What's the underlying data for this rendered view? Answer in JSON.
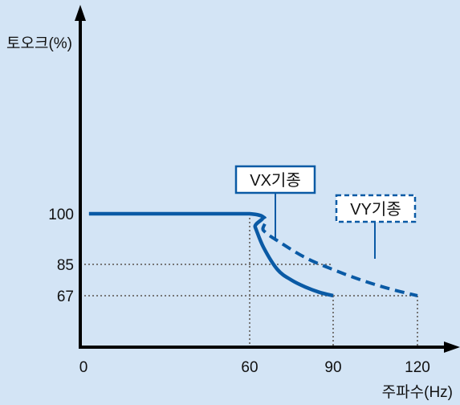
{
  "chart_data": {
    "type": "line",
    "ylabel": "토오크(%)",
    "xlabel": "주파수(Hz)",
    "x_ticks": [
      "0",
      "60",
      "90",
      "120"
    ],
    "y_ticks": [
      "100",
      "85",
      "67"
    ],
    "xlim": [
      0,
      120
    ],
    "ylim": [
      0,
      100
    ],
    "grid": false,
    "series": [
      {
        "name": "VX기종",
        "style": "solid",
        "color": "#0a5aa5",
        "points": [
          [
            2,
            100
          ],
          [
            60,
            100
          ],
          [
            62,
            96
          ],
          [
            65,
            90
          ],
          [
            70,
            82
          ],
          [
            75,
            76
          ],
          [
            80,
            72
          ],
          [
            85,
            69
          ],
          [
            90,
            67
          ]
        ]
      },
      {
        "name": "VY기종",
        "style": "dashed",
        "color": "#0a5aa5",
        "points": [
          [
            2,
            100
          ],
          [
            60,
            100
          ],
          [
            65,
            95
          ],
          [
            70,
            92
          ],
          [
            80,
            87
          ],
          [
            90,
            82
          ],
          [
            100,
            76
          ],
          [
            110,
            71
          ],
          [
            120,
            67
          ]
        ]
      }
    ],
    "reference_lines": [
      {
        "axis": "x",
        "value": 60,
        "to_y": 100
      },
      {
        "axis": "x",
        "value": 90,
        "to_y": 67
      },
      {
        "axis": "x",
        "value": 120,
        "to_y": 67
      },
      {
        "axis": "y",
        "value": 85,
        "to_x": 90
      },
      {
        "axis": "y",
        "value": 67,
        "to_x": 120
      }
    ]
  }
}
